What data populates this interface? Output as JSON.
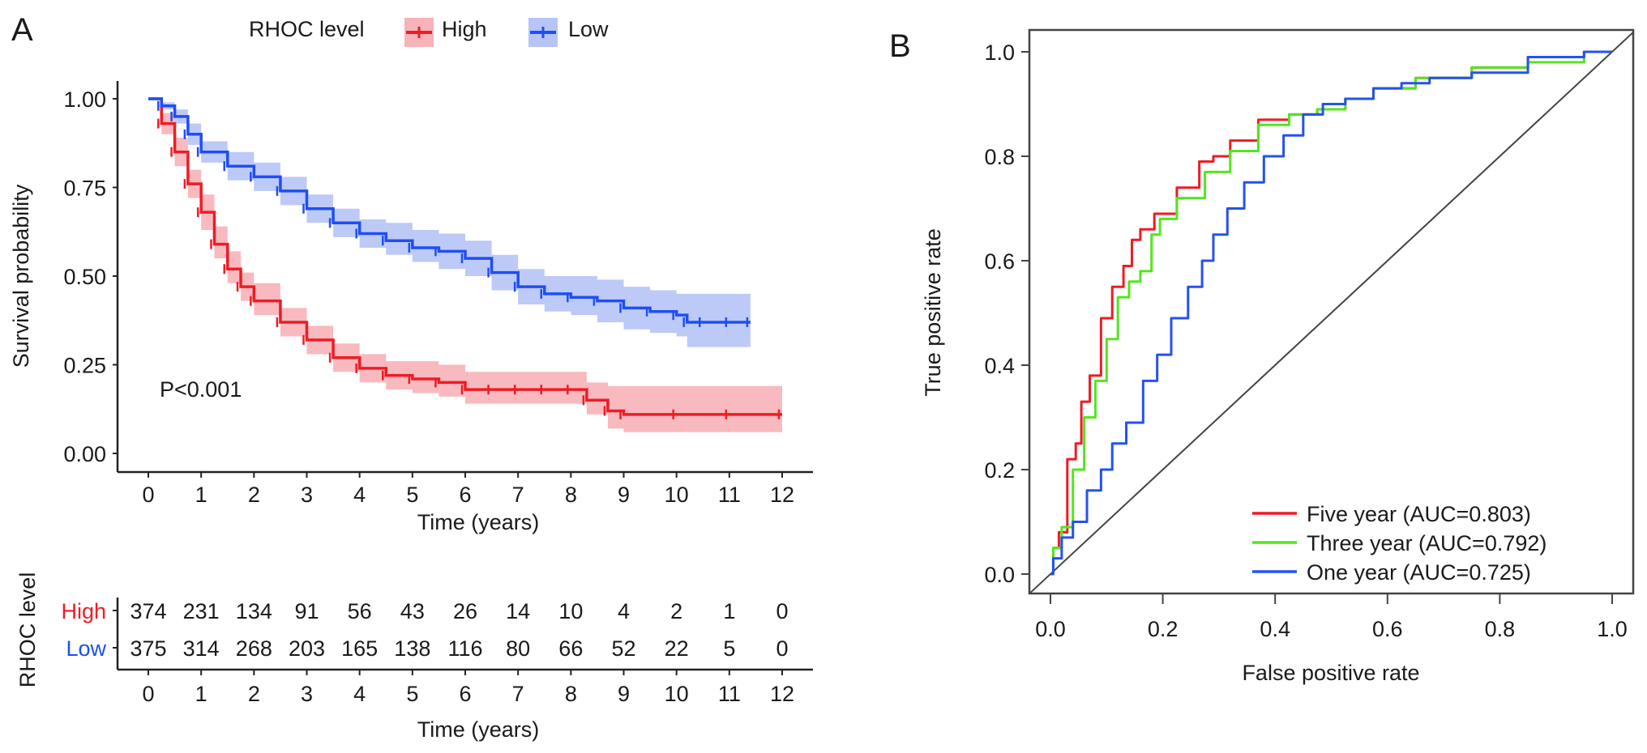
{
  "panels": {
    "a_label": "A",
    "b_label": "B"
  },
  "chart_data": [
    {
      "type": "line",
      "subtype": "kaplan-meier",
      "title": "",
      "xlabel": "Time (years)",
      "ylabel": "Survival probability",
      "xlim": [
        0,
        12
      ],
      "ylim": [
        0,
        1
      ],
      "x_ticks": [
        "0",
        "1",
        "2",
        "3",
        "4",
        "5",
        "6",
        "7",
        "8",
        "9",
        "10",
        "11",
        "12"
      ],
      "y_ticks": [
        "0.00",
        "0.25",
        "0.50",
        "0.75",
        "1.00"
      ],
      "legend_title": "RHOC level",
      "legend_position": "top",
      "annotation": "P<0.001",
      "series": [
        {
          "name": "High",
          "color": "#ee1c25",
          "band_color": "#f7b3b8",
          "x": [
            0,
            0.25,
            0.5,
            0.75,
            1.0,
            1.25,
            1.5,
            1.75,
            2.0,
            2.5,
            3.0,
            3.5,
            4.0,
            4.5,
            5.0,
            5.5,
            6.0,
            6.5,
            7.0,
            7.5,
            8.0,
            8.3,
            8.7,
            9.0,
            10.0,
            11.0,
            12.0
          ],
          "y": [
            1.0,
            0.93,
            0.85,
            0.76,
            0.68,
            0.59,
            0.52,
            0.47,
            0.43,
            0.37,
            0.32,
            0.27,
            0.24,
            0.22,
            0.21,
            0.2,
            0.18,
            0.18,
            0.18,
            0.18,
            0.18,
            0.15,
            0.12,
            0.11,
            0.11,
            0.11,
            0.11
          ],
          "lower": [
            1.0,
            0.9,
            0.81,
            0.72,
            0.63,
            0.55,
            0.48,
            0.43,
            0.39,
            0.33,
            0.28,
            0.23,
            0.2,
            0.18,
            0.17,
            0.16,
            0.14,
            0.14,
            0.14,
            0.14,
            0.14,
            0.11,
            0.07,
            0.06,
            0.06,
            0.06,
            0.06
          ],
          "upper": [
            1.0,
            0.96,
            0.89,
            0.8,
            0.73,
            0.64,
            0.57,
            0.51,
            0.48,
            0.41,
            0.36,
            0.31,
            0.28,
            0.26,
            0.26,
            0.25,
            0.23,
            0.23,
            0.23,
            0.23,
            0.23,
            0.2,
            0.19,
            0.19,
            0.19,
            0.19,
            0.19
          ]
        },
        {
          "name": "Low",
          "color": "#1f4ef5",
          "band_color": "#b6c4f6",
          "x": [
            0,
            0.25,
            0.5,
            0.75,
            1.0,
            1.5,
            2.0,
            2.5,
            3.0,
            3.5,
            4.0,
            4.5,
            5.0,
            5.5,
            6.0,
            6.5,
            7.0,
            7.5,
            8.0,
            8.5,
            9.0,
            9.5,
            10.0,
            10.2,
            10.5,
            11.0,
            11.4
          ],
          "y": [
            1.0,
            0.98,
            0.95,
            0.9,
            0.85,
            0.81,
            0.78,
            0.74,
            0.69,
            0.65,
            0.62,
            0.6,
            0.58,
            0.57,
            0.55,
            0.51,
            0.47,
            0.45,
            0.44,
            0.43,
            0.41,
            0.4,
            0.39,
            0.37,
            0.37,
            0.37,
            0.37
          ],
          "lower": [
            1.0,
            0.97,
            0.93,
            0.87,
            0.82,
            0.77,
            0.74,
            0.7,
            0.65,
            0.61,
            0.58,
            0.56,
            0.54,
            0.52,
            0.5,
            0.46,
            0.42,
            0.4,
            0.39,
            0.37,
            0.35,
            0.34,
            0.33,
            0.3,
            0.3,
            0.3,
            0.3
          ],
          "upper": [
            1.0,
            0.99,
            0.97,
            0.93,
            0.88,
            0.85,
            0.82,
            0.78,
            0.73,
            0.69,
            0.66,
            0.65,
            0.63,
            0.62,
            0.6,
            0.56,
            0.52,
            0.5,
            0.5,
            0.49,
            0.47,
            0.46,
            0.45,
            0.45,
            0.45,
            0.45,
            0.45
          ]
        }
      ]
    },
    {
      "type": "table",
      "subtype": "risk-table",
      "ylabel": "RHOC level",
      "xlabel": "Time (years)",
      "x_ticks": [
        "0",
        "1",
        "2",
        "3",
        "4",
        "5",
        "6",
        "7",
        "8",
        "9",
        "10",
        "11",
        "12"
      ],
      "rows": [
        {
          "name": "High",
          "color": "#ee1c25",
          "values": [
            "374",
            "231",
            "134",
            "91",
            "56",
            "43",
            "26",
            "14",
            "10",
            "4",
            "2",
            "1",
            "0"
          ]
        },
        {
          "name": "Low",
          "color": "#1f4ef5",
          "values": [
            "375",
            "314",
            "268",
            "203",
            "165",
            "138",
            "116",
            "80",
            "66",
            "52",
            "22",
            "5",
            "0"
          ]
        }
      ]
    },
    {
      "type": "line",
      "subtype": "roc",
      "title": "",
      "xlabel": "False positive rate",
      "ylabel": "True positive rate",
      "xlim": [
        0,
        1
      ],
      "ylim": [
        0,
        1
      ],
      "x_ticks": [
        "0.0",
        "0.2",
        "0.4",
        "0.6",
        "0.8",
        "1.0"
      ],
      "y_ticks": [
        "0.0",
        "0.2",
        "0.4",
        "0.6",
        "0.8",
        "1.0"
      ],
      "legend_position": "bottom-right",
      "reference_line": "diagonal",
      "series": [
        {
          "name": "Five year (AUC=0.803)",
          "color": "#ee1c25",
          "x": [
            0,
            0.01,
            0.02,
            0.04,
            0.05,
            0.06,
            0.08,
            0.1,
            0.12,
            0.14,
            0.15,
            0.17,
            0.2,
            0.25,
            0.28,
            0.3,
            0.34,
            0.4,
            0.45,
            0.5,
            0.55,
            0.6,
            0.7,
            0.8,
            0.9,
            1.0
          ],
          "y": [
            0,
            0.05,
            0.08,
            0.22,
            0.25,
            0.33,
            0.38,
            0.49,
            0.55,
            0.59,
            0.64,
            0.66,
            0.69,
            0.74,
            0.79,
            0.8,
            0.83,
            0.87,
            0.88,
            0.89,
            0.91,
            0.93,
            0.95,
            0.97,
            0.99,
            1.0
          ]
        },
        {
          "name": "Three year (AUC=0.792)",
          "color": "#54e61e",
          "x": [
            0,
            0.01,
            0.03,
            0.05,
            0.07,
            0.09,
            0.11,
            0.13,
            0.15,
            0.17,
            0.19,
            0.2,
            0.25,
            0.3,
            0.34,
            0.4,
            0.45,
            0.5,
            0.55,
            0.6,
            0.7,
            0.8,
            0.9,
            1.0
          ],
          "y": [
            0,
            0.05,
            0.09,
            0.2,
            0.3,
            0.37,
            0.45,
            0.53,
            0.56,
            0.58,
            0.65,
            0.68,
            0.72,
            0.77,
            0.81,
            0.86,
            0.88,
            0.89,
            0.91,
            0.93,
            0.95,
            0.97,
            0.98,
            1.0
          ]
        },
        {
          "name": "One year (AUC=0.725)",
          "color": "#2452f0",
          "x": [
            0,
            0.01,
            0.03,
            0.05,
            0.08,
            0.1,
            0.12,
            0.15,
            0.18,
            0.2,
            0.23,
            0.26,
            0.28,
            0.3,
            0.33,
            0.36,
            0.4,
            0.43,
            0.47,
            0.5,
            0.55,
            0.6,
            0.65,
            0.7,
            0.8,
            0.9,
            1.0
          ],
          "y": [
            0,
            0.03,
            0.07,
            0.1,
            0.16,
            0.2,
            0.25,
            0.29,
            0.37,
            0.42,
            0.49,
            0.55,
            0.6,
            0.65,
            0.7,
            0.75,
            0.8,
            0.84,
            0.88,
            0.9,
            0.91,
            0.93,
            0.94,
            0.95,
            0.96,
            0.99,
            1.0
          ]
        }
      ]
    }
  ]
}
